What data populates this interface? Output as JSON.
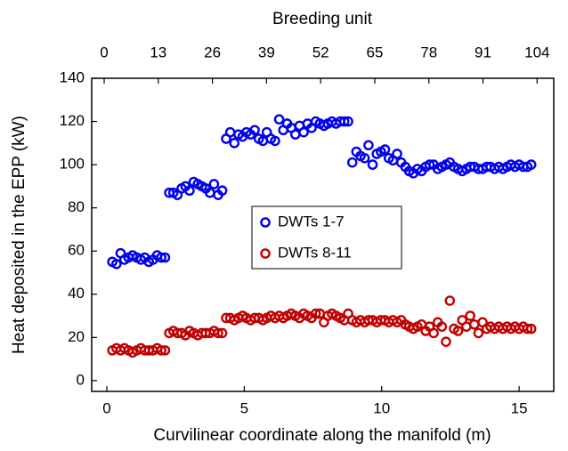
{
  "chart_data": {
    "type": "scatter",
    "xlabel": "Curvilinear coordinate along the manifold (m)",
    "x2label": "Breeding unit",
    "ylabel": "Heat deposited in the EPP (kW)",
    "xlim": [
      -0.55,
      16.26
    ],
    "xticks": [
      0,
      5,
      10,
      15
    ],
    "x2lim": [
      -3,
      108
    ],
    "x2ticks": [
      0,
      13,
      26,
      39,
      52,
      65,
      78,
      91,
      104
    ],
    "ylim": [
      -5,
      140
    ],
    "yticks": [
      0,
      20,
      40,
      60,
      80,
      100,
      120,
      140
    ],
    "legend": "center",
    "x": [
      0.2,
      0.35,
      0.5,
      0.64,
      0.79,
      0.94,
      1.09,
      1.24,
      1.38,
      1.53,
      1.68,
      1.83,
      1.98,
      2.12,
      2.27,
      2.42,
      2.57,
      2.72,
      2.86,
      3.01,
      3.16,
      3.31,
      3.46,
      3.6,
      3.75,
      3.9,
      4.05,
      4.2,
      4.34,
      4.49,
      4.64,
      4.79,
      4.94,
      5.08,
      5.23,
      5.38,
      5.53,
      5.68,
      5.82,
      5.97,
      6.12,
      6.27,
      6.42,
      6.56,
      6.71,
      6.86,
      7.01,
      7.16,
      7.3,
      7.45,
      7.6,
      7.75,
      7.9,
      8.04,
      8.19,
      8.34,
      8.49,
      8.64,
      8.78,
      8.93,
      9.08,
      9.23,
      9.38,
      9.52,
      9.67,
      9.82,
      9.97,
      10.12,
      10.26,
      10.41,
      10.56,
      10.71,
      10.86,
      11.0,
      11.15,
      11.3,
      11.45,
      11.6,
      11.74,
      11.89,
      12.04,
      12.19,
      12.34,
      12.48,
      12.63,
      12.78,
      12.93,
      13.08,
      13.22,
      13.37,
      13.52,
      13.67,
      13.82,
      13.96,
      14.11,
      14.26,
      14.41,
      14.56,
      14.7,
      14.85,
      15.0,
      15.15,
      15.3,
      15.44
    ],
    "series": [
      {
        "name": "DWTs 1-7",
        "color": "#0000ee",
        "values": [
          55,
          54,
          59,
          56,
          57,
          58,
          57,
          56,
          57,
          55,
          56,
          58,
          57,
          57,
          87,
          87,
          86,
          89,
          90,
          88,
          92,
          91,
          90,
          89,
          87,
          91,
          86,
          88,
          112,
          115,
          110,
          114,
          113,
          115,
          114,
          116,
          112,
          111,
          115,
          112,
          111,
          121,
          116,
          119,
          117,
          114,
          118,
          115,
          119,
          117,
          120,
          119,
          118,
          119,
          120,
          119,
          120,
          120,
          120,
          101,
          106,
          104,
          103,
          109,
          100,
          105,
          106,
          107,
          103,
          102,
          105,
          101,
          99,
          97,
          96,
          98,
          97,
          99,
          100,
          100,
          98,
          99,
          100,
          101,
          99,
          98,
          97,
          98,
          99,
          99,
          98,
          98,
          99,
          99,
          98,
          99,
          98,
          99,
          100,
          99,
          100,
          99,
          99,
          100
        ]
      },
      {
        "name": "DWTs 8-11",
        "color": "#c00000",
        "values": [
          14,
          15,
          14,
          15,
          14,
          13,
          14,
          15,
          14,
          14,
          14,
          15,
          14,
          14,
          22,
          23,
          22,
          22,
          21,
          23,
          22,
          21,
          22,
          22,
          22,
          23,
          22,
          22,
          29,
          29,
          28,
          29,
          30,
          29,
          28,
          29,
          29,
          28,
          29,
          30,
          29,
          30,
          29,
          30,
          31,
          30,
          29,
          31,
          30,
          29,
          31,
          31,
          27,
          30,
          31,
          30,
          29,
          28,
          31,
          28,
          27,
          28,
          27,
          28,
          28,
          27,
          28,
          28,
          27,
          28,
          27,
          28,
          26,
          25,
          24,
          25,
          26,
          23,
          25,
          22,
          27,
          25,
          18,
          37,
          24,
          23,
          28,
          25,
          30,
          26,
          22,
          27,
          24,
          25,
          24,
          25,
          24,
          25,
          24,
          25,
          24,
          25,
          24,
          24
        ]
      }
    ]
  }
}
